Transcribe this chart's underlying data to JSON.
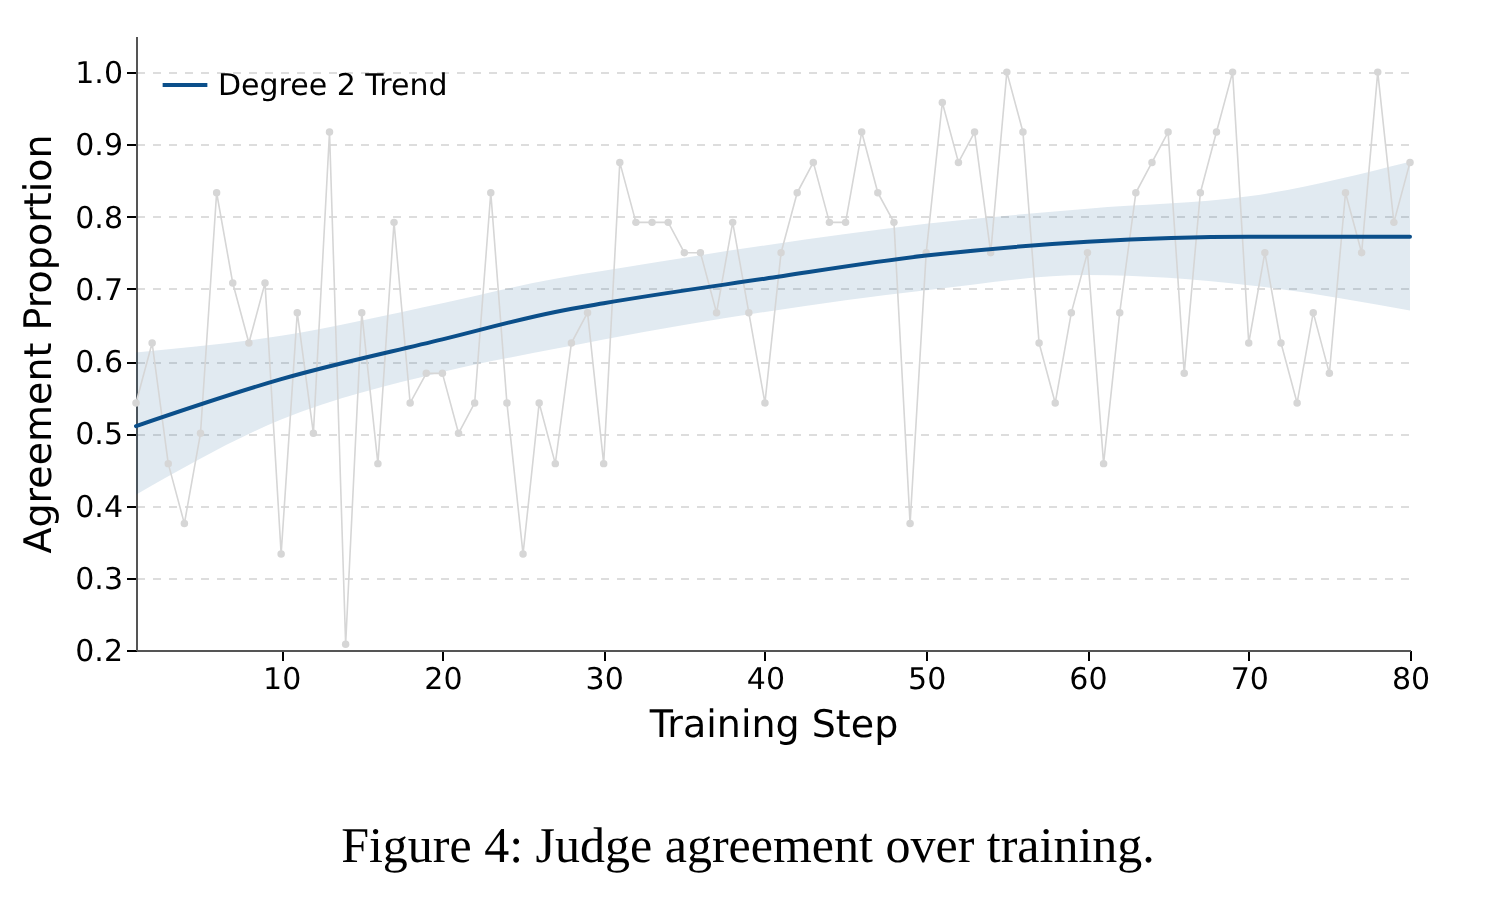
{
  "chart_data": {
    "type": "line",
    "xlabel": "Training Step",
    "ylabel": "Agreement Proportion",
    "annotations": [
      "Figure 4: Judge agreement over training."
    ],
    "x": [
      1,
      2,
      3,
      4,
      5,
      6,
      7,
      8,
      9,
      10,
      11,
      12,
      13,
      14,
      15,
      16,
      17,
      18,
      19,
      20,
      21,
      22,
      23,
      24,
      25,
      26,
      27,
      28,
      29,
      30,
      31,
      32,
      33,
      34,
      35,
      36,
      37,
      38,
      39,
      40,
      41,
      42,
      43,
      44,
      45,
      46,
      47,
      48,
      49,
      50,
      51,
      52,
      53,
      54,
      55,
      56,
      57,
      58,
      59,
      60,
      61,
      62,
      63,
      64,
      65,
      66,
      67,
      68,
      69,
      70,
      71,
      72,
      73,
      74,
      75,
      76,
      77,
      78,
      79,
      80
    ],
    "series": [
      {
        "color": "#d6d6d6",
        "marker": "circle",
        "values": [
          0.542,
          0.625,
          0.458,
          0.375,
          0.5,
          0.833,
          0.708,
          0.625,
          0.708,
          0.333,
          0.667,
          0.5,
          0.917,
          0.208,
          0.667,
          0.458,
          0.792,
          0.542,
          0.583,
          0.583,
          0.5,
          0.542,
          0.833,
          0.542,
          0.333,
          0.542,
          0.458,
          0.625,
          0.667,
          0.458,
          0.875,
          0.792,
          0.792,
          0.792,
          0.75,
          0.75,
          0.667,
          0.792,
          0.667,
          0.542,
          0.75,
          0.833,
          0.875,
          0.792,
          0.792,
          0.917,
          0.833,
          0.792,
          0.375,
          0.75,
          0.958,
          0.875,
          0.917,
          0.75,
          1.0,
          0.917,
          0.625,
          0.542,
          0.667,
          0.75,
          0.458,
          0.667,
          0.833,
          0.875,
          0.917,
          0.583,
          0.833,
          0.917,
          1.0,
          0.625,
          0.75,
          0.625,
          0.542,
          0.667,
          0.583,
          0.833,
          0.75,
          1.0,
          0.792,
          0.875
        ]
      },
      {
        "name": "Degree 2 Trend",
        "color": "#0b4f8a",
        "marker": "none",
        "x": [
          1,
          10,
          20,
          27,
          30,
          40,
          50,
          60,
          70,
          80
        ],
        "values": [
          0.51,
          0.575,
          0.63,
          0.668,
          0.68,
          0.714,
          0.746,
          0.765,
          0.772,
          0.772
        ],
        "lower": [
          0.415,
          0.519,
          0.585,
          0.617,
          0.63,
          0.668,
          0.698,
          0.719,
          0.705,
          0.67
        ],
        "upper": [
          0.612,
          0.635,
          0.68,
          0.714,
          0.725,
          0.76,
          0.79,
          0.811,
          0.828,
          0.876
        ]
      }
    ],
    "xlim": [
      1,
      80
    ],
    "xticks": [
      10,
      20,
      30,
      40,
      50,
      60,
      70,
      80
    ],
    "ylim": [
      0.2,
      1.05
    ],
    "yticks": [
      0.2,
      0.3,
      0.4,
      0.5,
      0.6,
      0.7,
      0.8,
      0.9,
      {
        "value": 1,
        "label": "1.0"
      }
    ],
    "grid": "y",
    "legend": "top left"
  }
}
